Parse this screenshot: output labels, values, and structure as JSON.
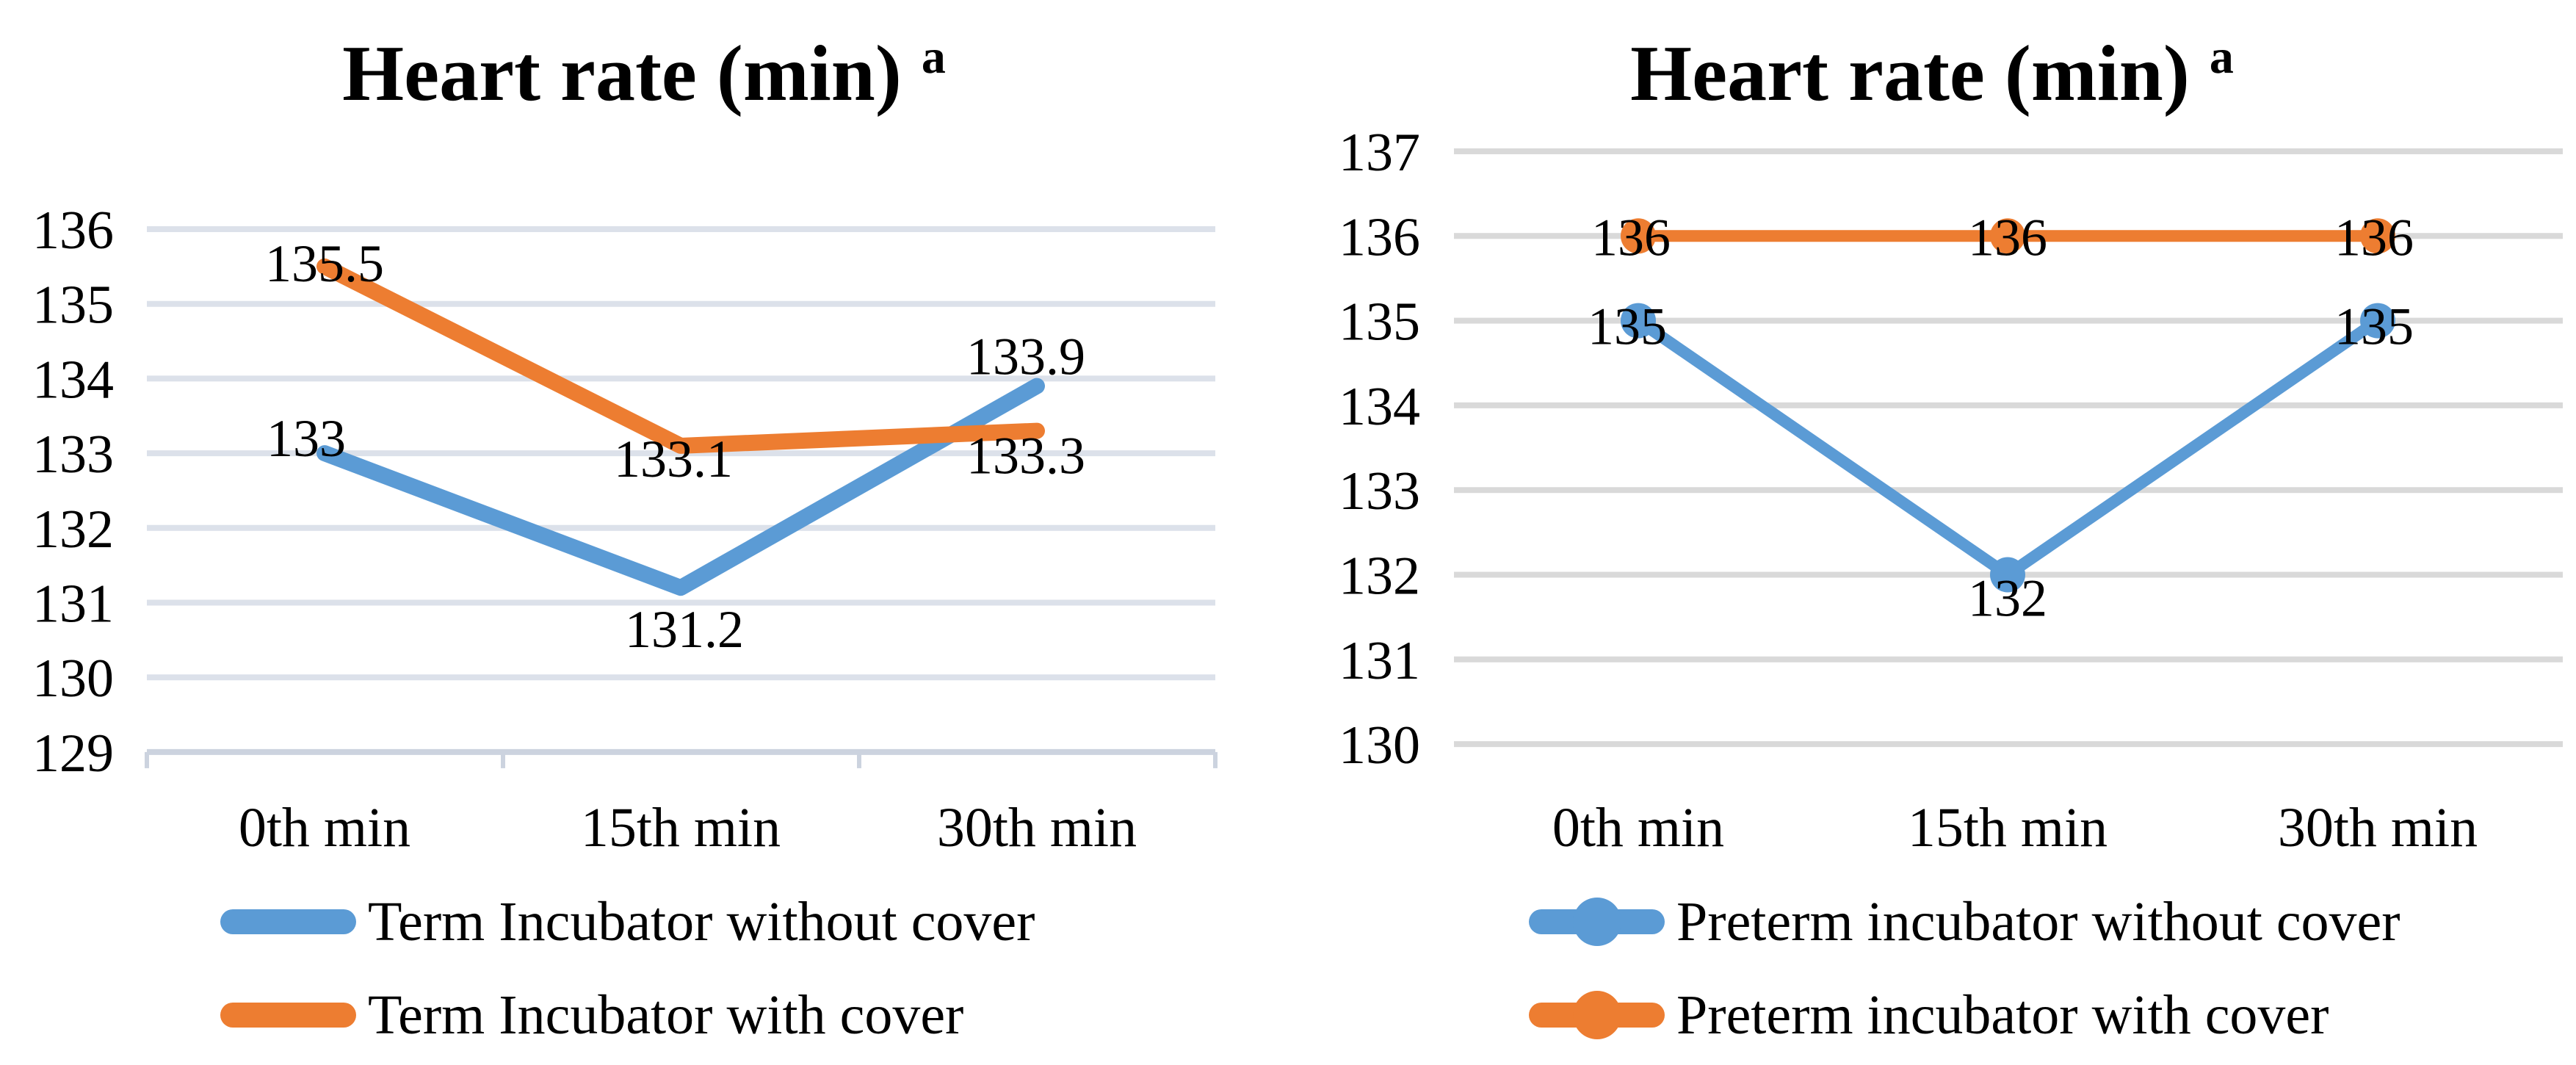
{
  "chart_data": [
    {
      "type": "line",
      "title": "Heart rate (min)",
      "title_superscript": "a",
      "categories": [
        "0th min",
        "15th min",
        "30th min"
      ],
      "xlabel": "",
      "ylabel": "",
      "y_axis": {
        "min": 129,
        "max": 136,
        "ticks": [
          "136",
          "135",
          "134",
          "133",
          "132",
          "131",
          "130",
          "129"
        ]
      },
      "grid": true,
      "grid_color": "#dce1ea",
      "axis_color": "#ccd3df",
      "has_bottom_axis_line": true,
      "legend_position": "bottom-left",
      "series": [
        {
          "name": "Term Incubator without cover",
          "color": "#5B9BD5",
          "marker": false,
          "values": [
            133,
            131.2,
            133.9
          ],
          "labels": [
            "133",
            "131.2",
            "133.9"
          ],
          "label_offsets": [
            [
              -25,
              -22
            ],
            [
              5,
              55
            ],
            [
              -15,
              -42
            ]
          ]
        },
        {
          "name": "Term Incubator with cover",
          "color": "#ED7D31",
          "marker": false,
          "values": [
            135.5,
            133.1,
            133.3
          ],
          "labels": [
            "135.5",
            "133.1",
            "133.3"
          ],
          "label_offsets": [
            [
              0,
              -6
            ],
            [
              -10,
              16
            ],
            [
              -15,
              32
            ]
          ]
        }
      ]
    },
    {
      "type": "line",
      "title": "Heart rate (min)",
      "title_superscript": "a",
      "categories": [
        "0th min",
        "15th min",
        "30th min"
      ],
      "xlabel": "",
      "ylabel": "",
      "y_axis": {
        "min": 130,
        "max": 137,
        "ticks": [
          "137",
          "136",
          "135",
          "134",
          "133",
          "132",
          "131",
          "130"
        ]
      },
      "grid": true,
      "grid_color": "#d9d9d9",
      "axis_color": "#d9d9d9",
      "has_bottom_axis_line": false,
      "legend_position": "bottom-left",
      "series": [
        {
          "name": "Preterm incubator without cover",
          "color": "#5B9BD5",
          "marker": true,
          "values": [
            135,
            132,
            135
          ],
          "labels": [
            "135",
            "132",
            "135"
          ],
          "label_offsets": [
            [
              -15,
              6
            ],
            [
              0,
              30
            ],
            [
              -5,
              6
            ]
          ]
        },
        {
          "name": "Preterm incubator with cover",
          "color": "#ED7D31",
          "marker": true,
          "values": [
            136,
            136,
            136
          ],
          "labels": [
            "136",
            "136",
            "136"
          ],
          "label_offsets": [
            [
              -10,
              0
            ],
            [
              0,
              0
            ],
            [
              -5,
              0
            ]
          ]
        }
      ]
    }
  ]
}
